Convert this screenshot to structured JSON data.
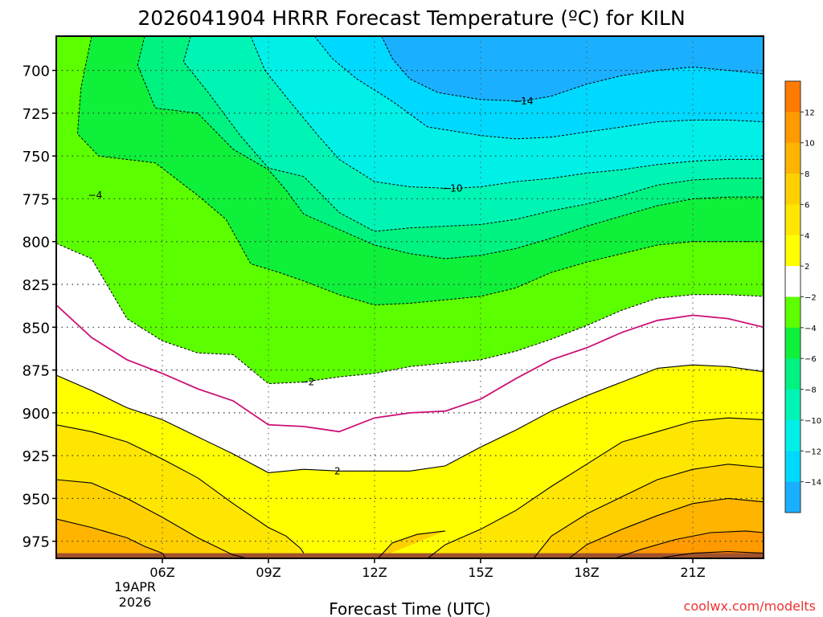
{
  "chart_data": {
    "type": "heatmap",
    "title": "2026041904 HRRR Forecast Temperature (ºC) for KILN",
    "xlabel": "Forecast Time (UTC)",
    "ylabel": "",
    "x_range_hours": [
      3,
      23
    ],
    "y_range_hPa": [
      680,
      985
    ],
    "x_ticks": [
      {
        "hour": 6,
        "label": "06Z"
      },
      {
        "hour": 9,
        "label": "09Z"
      },
      {
        "hour": 12,
        "label": "12Z"
      },
      {
        "hour": 15,
        "label": "15Z"
      },
      {
        "hour": 18,
        "label": "18Z"
      },
      {
        "hour": 21,
        "label": "21Z"
      }
    ],
    "date_label": [
      "19APR",
      "2026"
    ],
    "y_ticks": [
      {
        "value": 700,
        "label": "700"
      },
      {
        "value": 725,
        "label": "725"
      },
      {
        "value": 750,
        "label": "750"
      },
      {
        "value": 775,
        "label": "775"
      },
      {
        "value": 800,
        "label": "800"
      },
      {
        "value": 825,
        "label": "825"
      },
      {
        "value": 850,
        "label": "850"
      },
      {
        "value": 875,
        "label": "875"
      },
      {
        "value": 900,
        "label": "900"
      },
      {
        "value": 925,
        "label": "925"
      },
      {
        "value": 950,
        "label": "950"
      },
      {
        "value": 975,
        "label": "975"
      }
    ],
    "colorbar": [
      {
        "lo": -16,
        "hi": -14,
        "color": "#1ab0ff"
      },
      {
        "lo": -14,
        "hi": -12,
        "color": "#00d9ff"
      },
      {
        "lo": -12,
        "hi": -10,
        "color": "#00f0e8"
      },
      {
        "lo": -10,
        "hi": -8,
        "color": "#00f5b5"
      },
      {
        "lo": -8,
        "hi": -6,
        "color": "#00f280"
      },
      {
        "lo": -6,
        "hi": -4,
        "color": "#0ef03a"
      },
      {
        "lo": -4,
        "hi": -2,
        "color": "#5cff00"
      },
      {
        "lo": -2,
        "hi": 2,
        "color": "#ffffff"
      },
      {
        "lo": 2,
        "hi": 4,
        "color": "#ffff00"
      },
      {
        "lo": 4,
        "hi": 6,
        "color": "#ffe600"
      },
      {
        "lo": 6,
        "hi": 8,
        "color": "#ffd000"
      },
      {
        "lo": 8,
        "hi": 10,
        "color": "#ffb400"
      },
      {
        "lo": 10,
        "hi": 12,
        "color": "#ff9a00"
      },
      {
        "lo": 12,
        "hi": 14,
        "color": "#ff7a00"
      }
    ],
    "colorbar_labels": [
      "12",
      "10",
      "8",
      "6",
      "4",
      "2",
      "−2",
      "−4",
      "−6",
      "−8",
      "−10",
      "−12",
      "−14"
    ],
    "contour_labels": [
      {
        "text": "−14",
        "hour": 16.2,
        "hPa": 718
      },
      {
        "text": "−10",
        "hour": 14.2,
        "hPa": 769
      },
      {
        "text": "−4",
        "hour": 4.1,
        "hPa": 773
      },
      {
        "text": "−2",
        "hour": 10.1,
        "hPa": 882
      },
      {
        "text": "2",
        "hour": 10.95,
        "hPa": 934
      }
    ],
    "surface_color": "#a0522d",
    "zero_line_color": "#cc1177",
    "contours": [
      {
        "level": -14,
        "points": [
          [
            12.2,
            680
          ],
          [
            12.5,
            693
          ],
          [
            13,
            705
          ],
          [
            13.8,
            713
          ],
          [
            15,
            717
          ],
          [
            16.2,
            718
          ],
          [
            17,
            715
          ],
          [
            18,
            708
          ],
          [
            19,
            703
          ],
          [
            20,
            700
          ],
          [
            21,
            698
          ],
          [
            22,
            700
          ],
          [
            23,
            702
          ]
        ]
      },
      {
        "level": -12,
        "points": [
          [
            10.3,
            680
          ],
          [
            10.8,
            693
          ],
          [
            11.5,
            705
          ],
          [
            12.5,
            718
          ],
          [
            13.5,
            733
          ],
          [
            15,
            738
          ],
          [
            16,
            740
          ],
          [
            17,
            739
          ],
          [
            18,
            736
          ],
          [
            19,
            733
          ],
          [
            20,
            730
          ],
          [
            21,
            729
          ],
          [
            22,
            729
          ],
          [
            23,
            730
          ]
        ]
      },
      {
        "level": -10,
        "points": [
          [
            8.5,
            680
          ],
          [
            8.9,
            700
          ],
          [
            9.6,
            718
          ],
          [
            10.4,
            738
          ],
          [
            11,
            752
          ],
          [
            12,
            765
          ],
          [
            13,
            768
          ],
          [
            14.2,
            769
          ],
          [
            15,
            768
          ],
          [
            16,
            765
          ],
          [
            17,
            763
          ],
          [
            18,
            760
          ],
          [
            19,
            758
          ],
          [
            20,
            755
          ],
          [
            21,
            753
          ],
          [
            22,
            752
          ],
          [
            23,
            752
          ]
        ]
      },
      {
        "level": -8,
        "points": [
          [
            6.8,
            680
          ],
          [
            6.6,
            695
          ],
          [
            7.3,
            713
          ],
          [
            8.2,
            738
          ],
          [
            9,
            757
          ],
          [
            10,
            762
          ],
          [
            11,
            783
          ],
          [
            12,
            794
          ],
          [
            13,
            792
          ],
          [
            14,
            791
          ],
          [
            15,
            790
          ],
          [
            16,
            787
          ],
          [
            17,
            782
          ],
          [
            18,
            778
          ],
          [
            19,
            773
          ],
          [
            20,
            767
          ],
          [
            21,
            764
          ],
          [
            22,
            763
          ],
          [
            23,
            763
          ]
        ]
      },
      {
        "level": -6,
        "points": [
          [
            5.5,
            680
          ],
          [
            5.3,
            697
          ],
          [
            5.8,
            722
          ],
          [
            7,
            725
          ],
          [
            8,
            746
          ],
          [
            9,
            758
          ],
          [
            9.5,
            770
          ],
          [
            10,
            784
          ],
          [
            11,
            793
          ],
          [
            12,
            802
          ],
          [
            13,
            807
          ],
          [
            14,
            810
          ],
          [
            15,
            808
          ],
          [
            16,
            804
          ],
          [
            17,
            798
          ],
          [
            18,
            791
          ],
          [
            19,
            785
          ],
          [
            20,
            779
          ],
          [
            21,
            775
          ],
          [
            22,
            774
          ],
          [
            23,
            774
          ]
        ]
      },
      {
        "level": -4,
        "points": [
          [
            4,
            680
          ],
          [
            3.7,
            710
          ],
          [
            3.6,
            737
          ],
          [
            4.2,
            750
          ],
          [
            5.8,
            754
          ],
          [
            7,
            773
          ],
          [
            7.8,
            787
          ],
          [
            8.5,
            813
          ],
          [
            9.3,
            818
          ],
          [
            10,
            823
          ],
          [
            11,
            831
          ],
          [
            12,
            837
          ],
          [
            13,
            836
          ],
          [
            14,
            834
          ],
          [
            15,
            832
          ],
          [
            16,
            827
          ],
          [
            17,
            818
          ],
          [
            18,
            812
          ],
          [
            19,
            807
          ],
          [
            20,
            802
          ],
          [
            21,
            800
          ],
          [
            22,
            800
          ],
          [
            23,
            800
          ]
        ]
      },
      {
        "level": -2,
        "points": [
          [
            3,
            801
          ],
          [
            4,
            810
          ],
          [
            5,
            845
          ],
          [
            6,
            858
          ],
          [
            7,
            865
          ],
          [
            8,
            866
          ],
          [
            9,
            883
          ],
          [
            10,
            882
          ],
          [
            11,
            879
          ],
          [
            12,
            877
          ],
          [
            13,
            873
          ],
          [
            14,
            871
          ],
          [
            15,
            869
          ],
          [
            16,
            864
          ],
          [
            17,
            857
          ],
          [
            18,
            849
          ],
          [
            19,
            840
          ],
          [
            20,
            833
          ],
          [
            21,
            831
          ],
          [
            22,
            831
          ],
          [
            23,
            832
          ]
        ]
      },
      {
        "level": 0,
        "points": [
          [
            3,
            837
          ],
          [
            4,
            856
          ],
          [
            5,
            869
          ],
          [
            6,
            877
          ],
          [
            7,
            886
          ],
          [
            8,
            893
          ],
          [
            9,
            907
          ],
          [
            10,
            908
          ],
          [
            11,
            911
          ],
          [
            12,
            903
          ],
          [
            13,
            900
          ],
          [
            14,
            899
          ],
          [
            15,
            892
          ],
          [
            16,
            880
          ],
          [
            17,
            869
          ],
          [
            18,
            862
          ],
          [
            19,
            853
          ],
          [
            20,
            846
          ],
          [
            21,
            843
          ],
          [
            22,
            845
          ],
          [
            23,
            850
          ]
        ]
      },
      {
        "level": 2,
        "points": [
          [
            3,
            878
          ],
          [
            4,
            887
          ],
          [
            5,
            897
          ],
          [
            6,
            904
          ],
          [
            7,
            914
          ],
          [
            8,
            924
          ],
          [
            9,
            935
          ],
          [
            10,
            933
          ],
          [
            11,
            934
          ],
          [
            12,
            934
          ],
          [
            13,
            934
          ],
          [
            14,
            931
          ],
          [
            15,
            920
          ],
          [
            16,
            910
          ],
          [
            17,
            899
          ],
          [
            18,
            890
          ],
          [
            19,
            882
          ],
          [
            20,
            874
          ],
          [
            21,
            872
          ],
          [
            22,
            873
          ],
          [
            23,
            876
          ]
        ]
      },
      {
        "level": 4,
        "points": [
          [
            3,
            907
          ],
          [
            4,
            911
          ],
          [
            5,
            917
          ],
          [
            6,
            927
          ],
          [
            7,
            938
          ],
          [
            8,
            953
          ],
          [
            9,
            967
          ],
          [
            9.5,
            972
          ],
          [
            9.9,
            979
          ],
          [
            10,
            982
          ]
        ]
      },
      {
        "level": 4,
        "points": [
          [
            13.5,
            985
          ],
          [
            14,
            977
          ],
          [
            15,
            968
          ],
          [
            16,
            957
          ],
          [
            17,
            943
          ],
          [
            18,
            930
          ],
          [
            19,
            917
          ],
          [
            20,
            911
          ],
          [
            21,
            905
          ],
          [
            22,
            903
          ],
          [
            23,
            904
          ]
        ]
      },
      {
        "level": 6,
        "points": [
          [
            3,
            939
          ],
          [
            4,
            941
          ],
          [
            5,
            950
          ],
          [
            6,
            961
          ],
          [
            7,
            973
          ],
          [
            8,
            983
          ],
          [
            8.4,
            985
          ]
        ]
      },
      {
        "level": 6,
        "points": [
          [
            12.1,
            985
          ],
          [
            12.5,
            976
          ],
          [
            13.2,
            971
          ],
          [
            14,
            969
          ]
        ]
      },
      {
        "level": 6,
        "points": [
          [
            16.5,
            985
          ],
          [
            17,
            972
          ],
          [
            18,
            959
          ],
          [
            19,
            949
          ],
          [
            20,
            939
          ],
          [
            21,
            933
          ],
          [
            22,
            930
          ],
          [
            23,
            932
          ]
        ]
      },
      {
        "level": 8,
        "points": [
          [
            3,
            962
          ],
          [
            4,
            967
          ],
          [
            5,
            973
          ],
          [
            5.5,
            978
          ],
          [
            6,
            982
          ],
          [
            6.1,
            985
          ]
        ]
      },
      {
        "level": 8,
        "points": [
          [
            17.5,
            985
          ],
          [
            18,
            977
          ],
          [
            19,
            968
          ],
          [
            20,
            960
          ],
          [
            21,
            953
          ],
          [
            22,
            950
          ],
          [
            23,
            952
          ]
        ]
      },
      {
        "level": 10,
        "points": [
          [
            18.8,
            985
          ],
          [
            19.5,
            980
          ],
          [
            20.5,
            974
          ],
          [
            21.5,
            970
          ],
          [
            22.5,
            969
          ],
          [
            23,
            970
          ]
        ]
      },
      {
        "level": 12,
        "points": [
          [
            20,
            985
          ],
          [
            21,
            982
          ],
          [
            22,
            981
          ],
          [
            23,
            982
          ]
        ]
      }
    ],
    "credit": "coolwx.com/modelts"
  }
}
